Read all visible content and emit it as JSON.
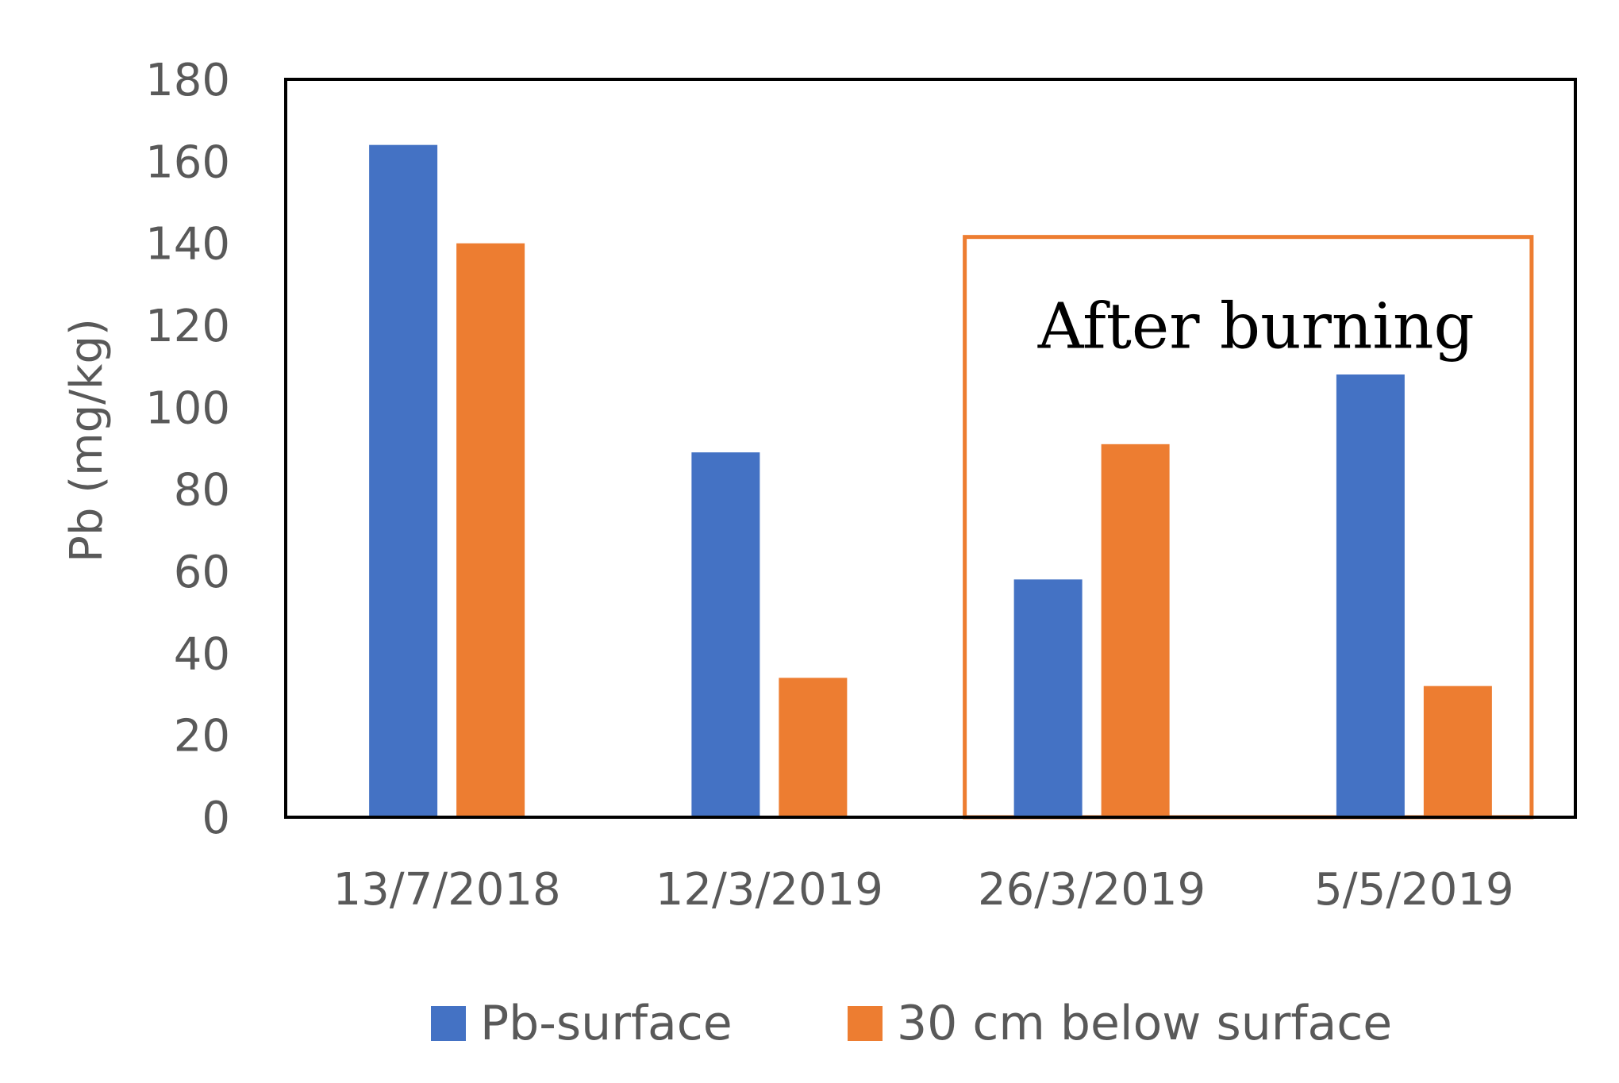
{
  "chart_data": {
    "type": "bar",
    "title": "",
    "xlabel": "",
    "ylabel": "Pb (mg/kg)",
    "ylim": [
      0,
      180
    ],
    "yticks": [
      0,
      20,
      40,
      60,
      80,
      100,
      120,
      140,
      160,
      180
    ],
    "grid": false,
    "legend": {
      "position": "bottom"
    },
    "categories": [
      "13/7/2018",
      "12/3/2019",
      "26/3/2019",
      "5/5/2019"
    ],
    "series": [
      {
        "name": "Pb-surface",
        "color": "#4472C4",
        "values": [
          164,
          89,
          58,
          108
        ]
      },
      {
        "name": "30 cm below surface",
        "color": "#ED7D31",
        "values": [
          140,
          34,
          91,
          32
        ]
      }
    ],
    "annotations": [
      {
        "text": "After burning",
        "categories": [
          "26/3/2019",
          "5/5/2019"
        ],
        "ymin": 0,
        "ymax": 140,
        "color": "#ED7D31"
      }
    ]
  }
}
